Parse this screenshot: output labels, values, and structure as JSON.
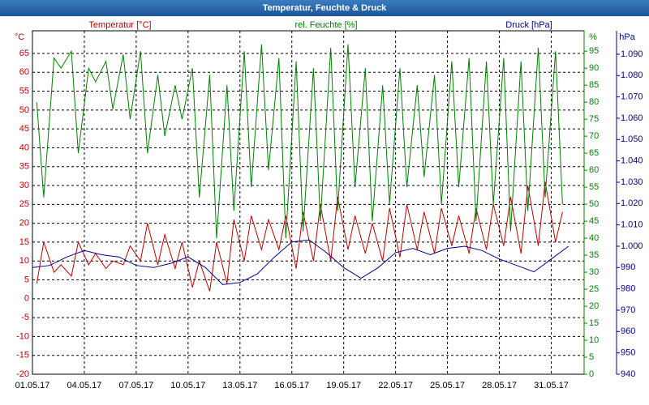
{
  "chart_data": {
    "type": "line",
    "title": "Temperatur, Feuchte & Druck",
    "y_unit": "°C",
    "y2_unit": "%",
    "y3_unit": "hPa",
    "xlim": [
      0,
      31.9
    ],
    "xticks": [
      {
        "value": 0,
        "label": "01.05.17"
      },
      {
        "value": 3,
        "label": "04.05.17"
      },
      {
        "value": 6,
        "label": "07.05.17"
      },
      {
        "value": 9,
        "label": "10.05.17"
      },
      {
        "value": 12,
        "label": "13.05.17"
      },
      {
        "value": 15,
        "label": "16.05.17"
      },
      {
        "value": 18,
        "label": "19.05.17"
      },
      {
        "value": 21,
        "label": "22.05.17"
      },
      {
        "value": 24,
        "label": "25.05.17"
      },
      {
        "value": 27,
        "label": "28.05.17"
      },
      {
        "value": 30,
        "label": "31.05.17"
      }
    ],
    "ylim": [
      -20,
      71
    ],
    "yticks": [
      -20,
      -15,
      -10,
      -5,
      0,
      5,
      10,
      15,
      20,
      25,
      30,
      35,
      40,
      45,
      50,
      55,
      60,
      65
    ],
    "y2lim": [
      0,
      101
    ],
    "y2ticks": [
      0,
      5,
      10,
      15,
      20,
      25,
      30,
      35,
      40,
      45,
      50,
      55,
      60,
      65,
      70,
      75,
      80,
      85,
      90,
      95
    ],
    "y3lim": [
      940,
      1101
    ],
    "y3ticks": [
      940,
      950,
      960,
      970,
      980,
      990,
      {
        "value": 1000,
        "label": "1.000"
      },
      {
        "value": 1010,
        "label": "1.010"
      },
      {
        "value": 1020,
        "label": "1.020"
      },
      {
        "value": 1030,
        "label": "1.030"
      },
      {
        "value": 1040,
        "label": "1.040"
      },
      {
        "value": 1050,
        "label": "1.050"
      },
      {
        "value": 1060,
        "label": "1.060"
      },
      {
        "value": 1070,
        "label": "1.070"
      },
      {
        "value": 1080,
        "label": "1.080"
      },
      {
        "value": 1090,
        "label": "1.090"
      }
    ],
    "grid": true,
    "x": [
      0.25,
      0.65,
      1.25,
      1.65,
      2.25,
      2.65,
      3.25,
      3.65,
      4.25,
      4.65,
      5.25,
      5.65,
      6.25,
      6.65,
      7.25,
      7.65,
      8.25,
      8.65,
      9.25,
      9.65,
      10.25,
      10.65,
      11.25,
      11.65,
      12.25,
      12.65,
      13.25,
      13.65,
      14.25,
      14.65,
      15.25,
      15.65,
      16.25,
      16.65,
      17.25,
      17.65,
      18.25,
      18.65,
      19.25,
      19.65,
      20.25,
      20.65,
      21.25,
      21.65,
      22.25,
      22.65,
      23.25,
      23.65,
      24.25,
      24.65,
      25.25,
      25.65,
      26.25,
      26.65,
      27.25,
      27.65,
      28.25,
      28.65,
      29.25,
      29.65,
      30.25,
      30.65
    ],
    "series": [
      {
        "name": "Temperatur [°C]",
        "color": "#c00000",
        "axis": "y",
        "values": [
          4,
          15,
          7,
          9,
          6,
          15,
          9,
          12,
          8,
          10,
          9,
          14,
          10,
          20,
          9,
          17,
          8,
          15,
          3,
          10,
          2,
          15,
          4,
          21,
          10,
          22,
          13,
          21,
          13,
          22,
          8,
          23,
          10,
          25,
          10,
          27,
          13,
          22,
          12,
          20,
          10,
          24,
          11,
          25,
          13,
          23,
          12,
          24,
          14,
          22,
          12,
          24,
          13,
          25,
          14,
          27,
          12,
          30,
          14,
          31,
          15,
          23
        ]
      },
      {
        "name": "rel. Feuchte [%]",
        "color": "#008000",
        "axis": "y2",
        "values": [
          80,
          52,
          93,
          90,
          95,
          65,
          90,
          86,
          92,
          78,
          94,
          75,
          95,
          65,
          88,
          70,
          85,
          75,
          90,
          52,
          88,
          40,
          85,
          48,
          95,
          55,
          97,
          60,
          93,
          40,
          92,
          42,
          90,
          45,
          96,
          48,
          97,
          55,
          90,
          45,
          85,
          50,
          90,
          55,
          85,
          58,
          88,
          50,
          92,
          55,
          93,
          45,
          92,
          50,
          93,
          42,
          92,
          48,
          96,
          52,
          95,
          50
        ]
      },
      {
        "name": "Druck [hPa]",
        "color": "#000090",
        "axis": "y3",
        "x": [
          0,
          1,
          2,
          3,
          4,
          5,
          6,
          7,
          8,
          9,
          10,
          11,
          12,
          13,
          14,
          15,
          16,
          17,
          18,
          19,
          20,
          21,
          22,
          23,
          24,
          25,
          26,
          27,
          28,
          29,
          30,
          31
        ],
        "values": [
          990,
          991,
          995,
          998,
          996,
          995,
          991,
          990,
          992,
          995,
          990,
          982,
          983,
          987,
          995,
          1002,
          1003,
          997,
          990,
          985,
          990,
          997,
          999,
          996,
          999,
          1000,
          998,
          994,
          991,
          988,
          994,
          1000
        ]
      }
    ]
  }
}
